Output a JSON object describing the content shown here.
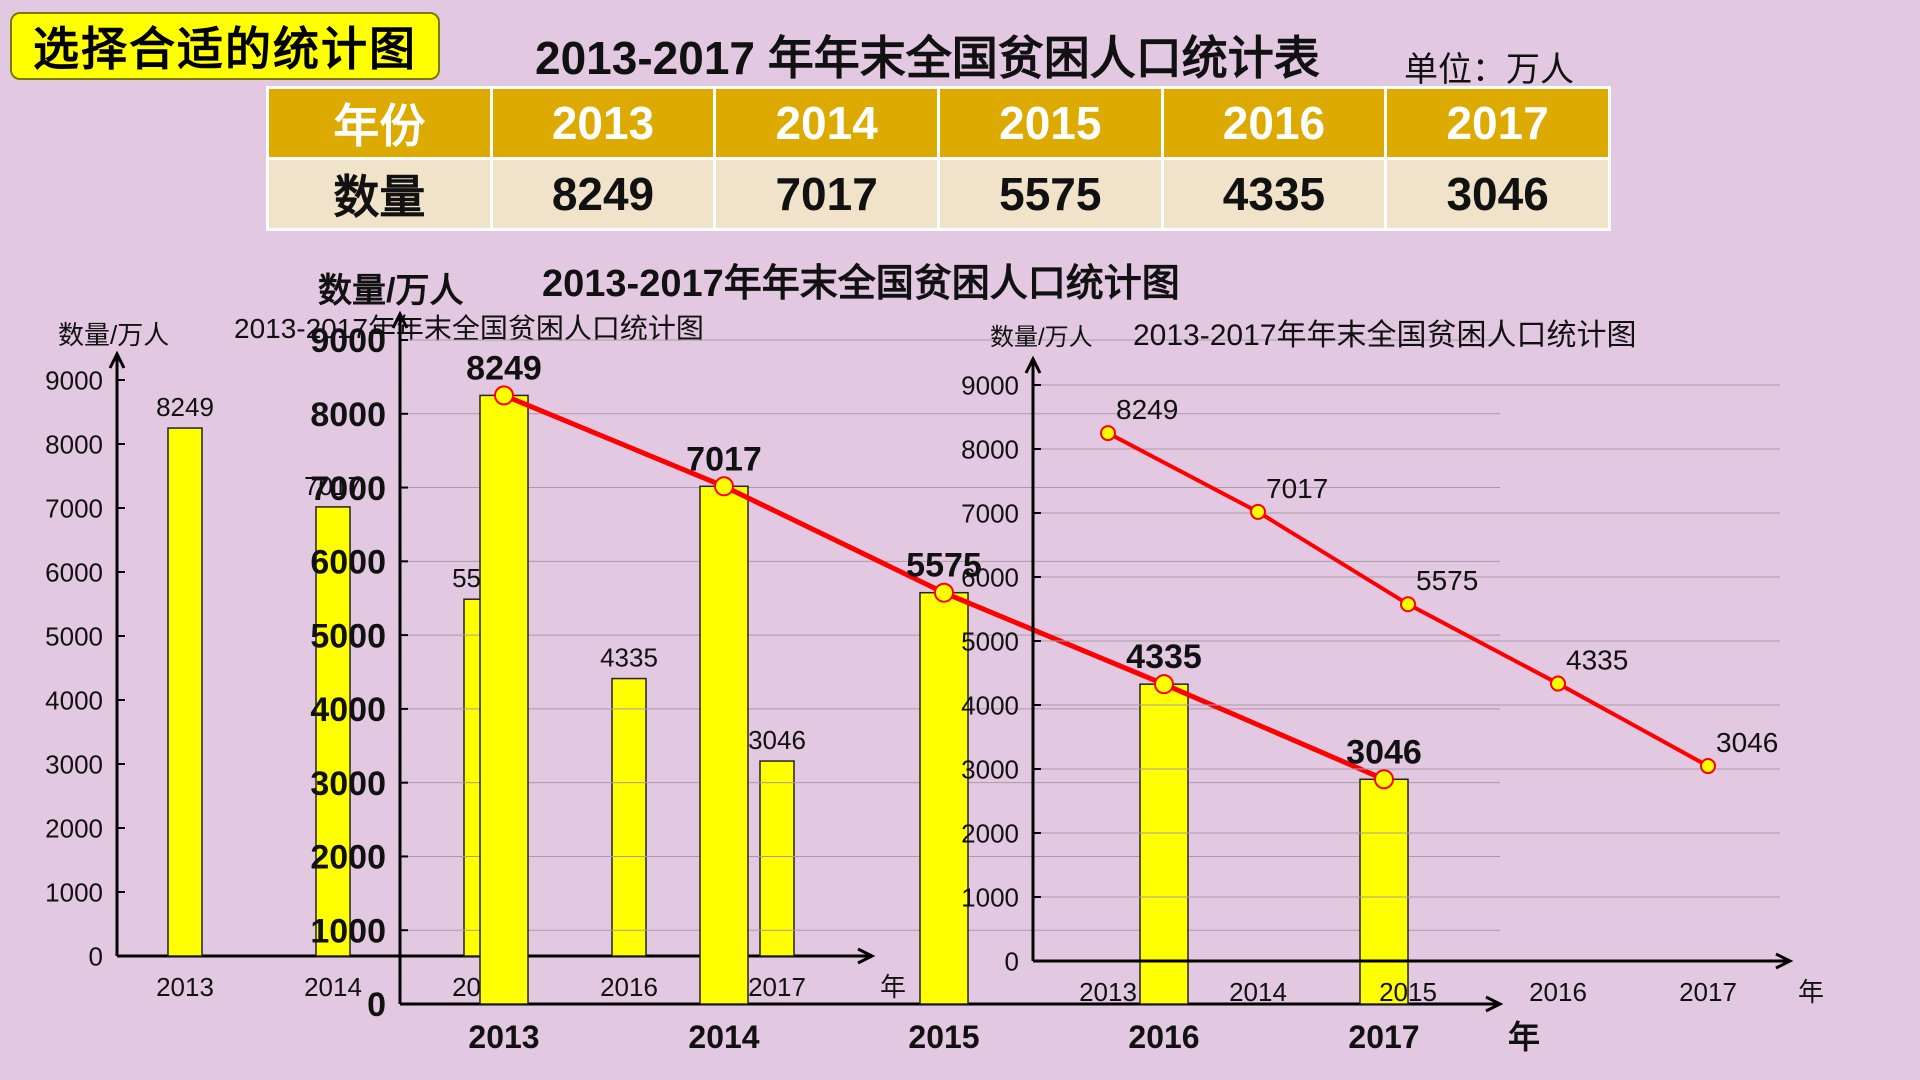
{
  "header": {
    "title_box": "选择合适的统计图",
    "table_title": "2013-2017 年年末全国贫困人口统计表",
    "unit": "单位：万人"
  },
  "table": {
    "row_labels": [
      "年份",
      "数量"
    ],
    "years": [
      "2013",
      "2014",
      "2015",
      "2016",
      "2017"
    ],
    "values": [
      "8249",
      "7017",
      "5575",
      "4335",
      "3046"
    ]
  },
  "colors": {
    "background": "#e3c8e2",
    "title_box": "#ffff00",
    "table_header": "#dcaa00",
    "table_body": "#f1e3c9",
    "bar": "#ffff00",
    "line": "#ff0000",
    "marker": "#ffff00"
  },
  "chart_data": [
    {
      "type": "bar",
      "title": "2013-2017年年末全国贫困人口统计图",
      "ylabel": "数量/万人",
      "xlabel": "年",
      "categories": [
        "2013",
        "2014",
        "2015",
        "2016",
        "2017"
      ],
      "values": [
        8249,
        7017,
        5575,
        4335,
        3046
      ],
      "value_labels": [
        "8249",
        "7017",
        "5575",
        "4335",
        "3046"
      ],
      "yticks": [
        0,
        1000,
        2000,
        3000,
        4000,
        5000,
        6000,
        7000,
        8000,
        9000
      ],
      "ytick_labels": [
        "0",
        "1000",
        "2000",
        "3000",
        "4000",
        "5000",
        "6000",
        "7000",
        "8000",
        "9000"
      ],
      "ylim": [
        0,
        9000
      ],
      "grid": false
    },
    {
      "type": "bar+line",
      "title": "2013-2017年年末全国贫困人口统计图",
      "ylabel": "数量/万人",
      "xlabel": "年",
      "categories": [
        "2013",
        "2014",
        "2015",
        "2016",
        "2017"
      ],
      "values": [
        8249,
        7017,
        5575,
        4335,
        3046
      ],
      "value_labels": [
        "8249",
        "7017",
        "5575",
        "4335",
        "3046"
      ],
      "yticks": [
        0,
        1000,
        2000,
        3000,
        4000,
        5000,
        6000,
        7000,
        8000,
        9000
      ],
      "ytick_labels": [
        "0",
        "1000",
        "2000",
        "3000",
        "4000",
        "5000",
        "6000",
        "7000",
        "8000",
        "9000"
      ],
      "ylim": [
        0,
        9000
      ],
      "grid": true
    },
    {
      "type": "line",
      "title": "2013-2017年年末全国贫困人口统计图",
      "ylabel": "数量/万人",
      "xlabel": "年",
      "categories": [
        "2013",
        "2014",
        "2015",
        "2016",
        "2017"
      ],
      "values": [
        8249,
        7017,
        5575,
        4335,
        3046
      ],
      "value_labels": [
        "8249",
        "7017",
        "5575",
        "4335",
        "3046"
      ],
      "yticks": [
        0,
        1000,
        2000,
        3000,
        4000,
        5000,
        6000,
        7000,
        8000,
        9000
      ],
      "ytick_labels": [
        "0",
        "1000",
        "2000",
        "3000",
        "4000",
        "5000",
        "6000",
        "7000",
        "8000",
        "9000"
      ],
      "ylim": [
        0,
        9000
      ],
      "grid": true
    }
  ]
}
